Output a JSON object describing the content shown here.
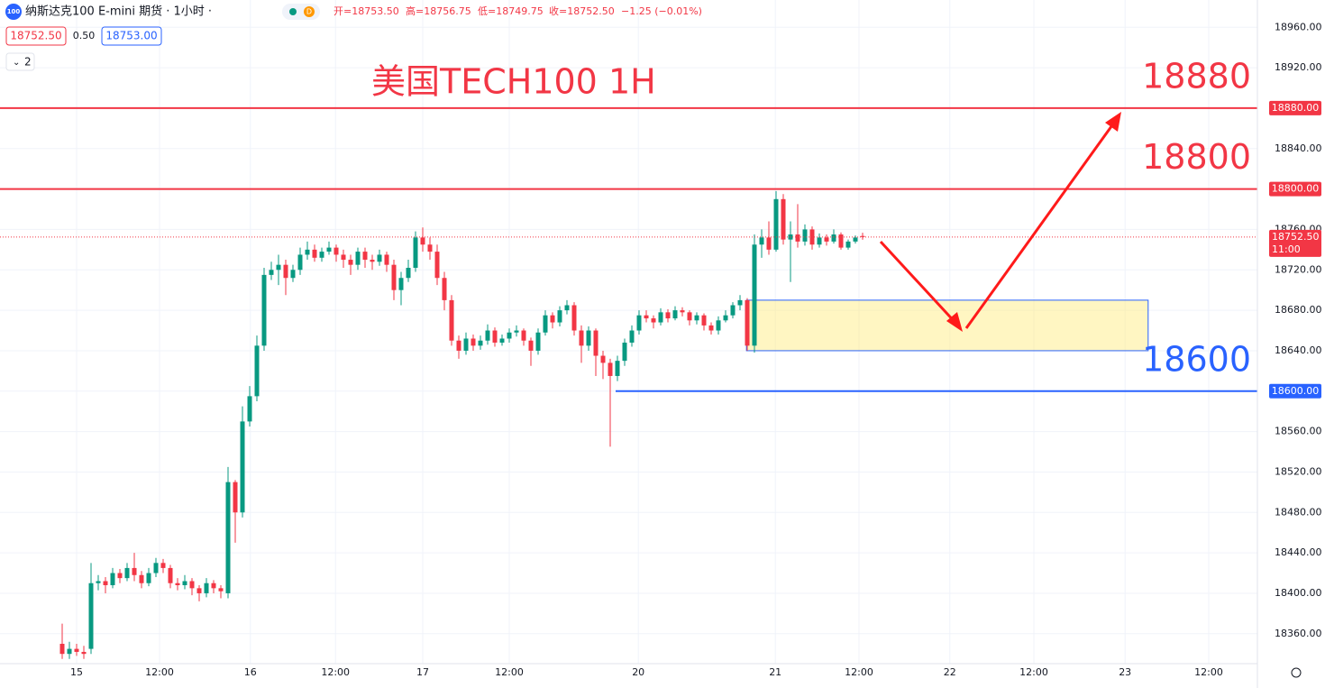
{
  "header": {
    "icon": "100",
    "title": "纳斯达克100 E-mini 期货 · 1小时 ·",
    "badge": "D",
    "ohlc": [
      "开=18753.50",
      "高=18756.75",
      "低=18749.75",
      "收=18752.50",
      "−1.25 (−0.01%)"
    ],
    "bid": "18752.50",
    "spread": "0.50",
    "ask": "18753.00",
    "indicator_count": "2"
  },
  "chart_data": {
    "type": "candlestick",
    "title": "美国TECH100 1H",
    "up_color": "#089981",
    "down_color": "#f23645",
    "grid": true,
    "xlim": [
      -8.625,
      165.75
    ],
    "xticks": [
      {
        "value": 2,
        "label": "15"
      },
      {
        "value": 13.5,
        "label": "12:00"
      },
      {
        "value": 26.1,
        "label": "16"
      },
      {
        "value": 37.9,
        "label": "12:00"
      },
      {
        "value": 50,
        "label": "17"
      },
      {
        "value": 62,
        "label": "12:00"
      },
      {
        "value": 79.9,
        "label": "20"
      },
      {
        "value": 98.9,
        "label": "21"
      },
      {
        "value": 110.5,
        "label": "12:00"
      },
      {
        "value": 123.1,
        "label": "22"
      },
      {
        "value": 134.75,
        "label": "12:00"
      },
      {
        "value": 147.4,
        "label": "23"
      },
      {
        "value": 159,
        "label": "12:00"
      }
    ],
    "ylim": [
      18330.36,
      18987
    ],
    "yticks": [
      {
        "value": 18360,
        "label": "18360.00"
      },
      {
        "value": 18400,
        "label": "18400.00"
      },
      {
        "value": 18440,
        "label": "18440.00"
      },
      {
        "value": 18480,
        "label": "18480.00"
      },
      {
        "value": 18520,
        "label": "18520.00"
      },
      {
        "value": 18560,
        "label": "18560.00"
      },
      {
        "value": 18600,
        "label": "18600.00"
      },
      {
        "value": 18640,
        "label": "18640.00"
      },
      {
        "value": 18680,
        "label": "18680.00"
      },
      {
        "value": 18720,
        "label": "18720.00"
      },
      {
        "value": 18760,
        "label": "18760.00"
      },
      {
        "value": 18800,
        "label": "18800.00"
      },
      {
        "value": 18840,
        "label": "18840.00"
      },
      {
        "value": 18880,
        "label": "18880.00"
      },
      {
        "value": 18920,
        "label": "18920.00"
      },
      {
        "value": 18960,
        "label": "18960.00"
      }
    ],
    "open": [
      18350,
      18340,
      18345,
      18342,
      18345,
      18410,
      18412,
      18408,
      18420,
      18415,
      18425,
      18418,
      18410,
      18420,
      18430,
      18425,
      18410,
      18408,
      18412,
      18405,
      18400,
      18410,
      18405,
      18400,
      18510,
      18480,
      18570,
      18595,
      18645,
      18715,
      18720,
      18725,
      18712,
      18720,
      18735,
      18740,
      18732,
      18738,
      18742,
      18735,
      18730,
      18725,
      18738,
      18730,
      18728,
      18735,
      18725,
      18700,
      18712,
      18722,
      18752,
      18745,
      18738,
      18712,
      18690,
      18650,
      18640,
      18652,
      18645,
      18650,
      18660,
      18648,
      18652,
      18658,
      18660,
      18650,
      18640,
      18658,
      18675,
      18668,
      18680,
      18685,
      18660,
      18645,
      18660,
      18635,
      18628,
      18615,
      18630,
      18648,
      18660,
      18675,
      18672,
      18668,
      18678,
      18672,
      18680,
      18678,
      18670,
      18675,
      18665,
      18660,
      18670,
      18675,
      18685,
      18690,
      18645,
      18745,
      18752,
      18740,
      18790,
      18750,
      18755,
      18748,
      18760,
      18745,
      18752,
      18748,
      18755,
      18742,
      18748,
      18753.5
    ],
    "high": [
      18370,
      18352,
      18350,
      18348,
      18430,
      18418,
      18416,
      18425,
      18424,
      18430,
      18440,
      18422,
      18425,
      18435,
      18434,
      18428,
      18415,
      18418,
      18415,
      18408,
      18415,
      18413,
      18408,
      18525,
      18512,
      18585,
      18605,
      18655,
      18722,
      18728,
      18735,
      18730,
      18725,
      18742,
      18748,
      18745,
      18742,
      18748,
      18745,
      18740,
      18735,
      18742,
      18742,
      18735,
      18740,
      18738,
      18730,
      18718,
      18730,
      18758,
      18762,
      18752,
      18745,
      18718,
      18695,
      18655,
      18658,
      18656,
      18655,
      18666,
      18663,
      18656,
      18662,
      18665,
      18662,
      18653,
      18662,
      18680,
      18678,
      18684,
      18690,
      18688,
      18665,
      18664,
      18662,
      18640,
      18632,
      18635,
      18652,
      18665,
      18680,
      18680,
      18675,
      18682,
      18681,
      18684,
      18683,
      18680,
      18678,
      18677,
      18668,
      18674,
      18680,
      18688,
      18695,
      18692,
      18755,
      18760,
      18768,
      18798,
      18795,
      18768,
      18785,
      18765,
      18763,
      18756,
      18755,
      18760,
      18757,
      18750,
      18754,
      18756.75
    ],
    "low": [
      18335,
      18335,
      18338,
      18335,
      18340,
      18403,
      18400,
      18405,
      18410,
      18412,
      18412,
      18405,
      18407,
      18416,
      18420,
      18405,
      18403,
      18404,
      18398,
      18392,
      18396,
      18400,
      18395,
      18395,
      18450,
      18475,
      18565,
      18590,
      18640,
      18710,
      18705,
      18695,
      18708,
      18715,
      18730,
      18728,
      18728,
      18735,
      18728,
      18722,
      18715,
      18720,
      18722,
      18720,
      18724,
      18718,
      18690,
      18685,
      18708,
      18718,
      18738,
      18730,
      18705,
      18680,
      18645,
      18632,
      18636,
      18640,
      18641,
      18646,
      18644,
      18645,
      18648,
      18654,
      18645,
      18625,
      18636,
      18655,
      18662,
      18664,
      18676,
      18655,
      18628,
      18640,
      18615,
      18612,
      18545,
      18610,
      18625,
      18644,
      18656,
      18668,
      18662,
      18665,
      18668,
      18670,
      18674,
      18665,
      18666,
      18660,
      18656,
      18656,
      18668,
      18672,
      18680,
      18640,
      18638,
      18732,
      18735,
      18738,
      18745,
      18708,
      18742,
      18744,
      18740,
      18742,
      18744,
      18746,
      18740,
      18740,
      18746,
      18749.75
    ],
    "close": [
      18340,
      18345,
      18342,
      18340,
      18410,
      18412,
      18408,
      18420,
      18415,
      18425,
      18418,
      18410,
      18420,
      18430,
      18425,
      18410,
      18408,
      18412,
      18405,
      18400,
      18410,
      18405,
      18402,
      18510,
      18480,
      18570,
      18595,
      18645,
      18715,
      18720,
      18725,
      18712,
      18720,
      18735,
      18740,
      18732,
      18738,
      18742,
      18735,
      18730,
      18725,
      18738,
      18730,
      18728,
      18735,
      18725,
      18700,
      18712,
      18722,
      18752,
      18745,
      18738,
      18712,
      18690,
      18650,
      18640,
      18652,
      18645,
      18650,
      18660,
      18648,
      18652,
      18658,
      18660,
      18650,
      18640,
      18658,
      18675,
      18668,
      18680,
      18685,
      18660,
      18645,
      18660,
      18635,
      18628,
      18615,
      18630,
      18648,
      18660,
      18675,
      18672,
      18668,
      18678,
      18672,
      18680,
      18678,
      18670,
      18675,
      18665,
      18660,
      18670,
      18675,
      18685,
      18690,
      18645,
      18745,
      18752,
      18740,
      18790,
      18750,
      18755,
      18748,
      18760,
      18745,
      18752,
      18748,
      18755,
      18742,
      18748,
      18752,
      18752.5
    ],
    "levels": [
      {
        "value": 18880,
        "label": "18880.00",
        "annotation": "18880",
        "color": "#f23645",
        "start": -8.625
      },
      {
        "value": 18800,
        "label": "18800.00",
        "annotation": "18800",
        "color": "#f23645",
        "start": -8.625
      },
      {
        "value": 18600,
        "label": "18600.00",
        "annotation": "18600",
        "color": "#2962ff",
        "start": 76.75
      }
    ],
    "zone": {
      "low": 18640,
      "high": 18690,
      "start": 94.9,
      "end": 150.6
    },
    "last_price": {
      "value": 18752.5,
      "label": "18752.50",
      "time": "11:00"
    }
  }
}
